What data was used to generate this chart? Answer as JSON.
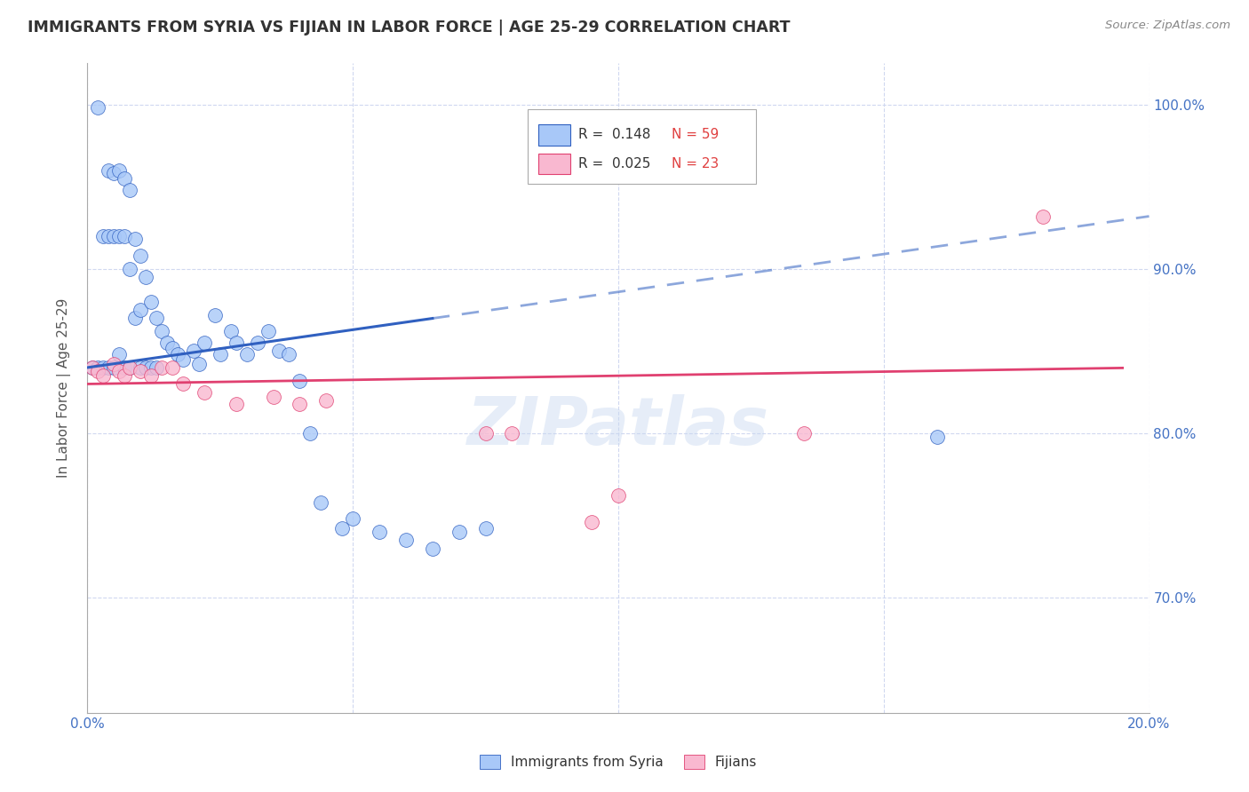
{
  "title": "IMMIGRANTS FROM SYRIA VS FIJIAN IN LABOR FORCE | AGE 25-29 CORRELATION CHART",
  "source": "Source: ZipAtlas.com",
  "ylabel": "In Labor Force | Age 25-29",
  "x_min": 0.0,
  "x_max": 0.2,
  "y_min": 0.63,
  "y_max": 1.025,
  "legend_syria_r": "R =  0.148",
  "legend_syria_n": "N = 59",
  "legend_fijian_r": "R =  0.025",
  "legend_fijian_n": "N = 23",
  "syria_color": "#A8C8F8",
  "fijian_color": "#F9B8D0",
  "syria_line_color": "#3060C0",
  "fijian_line_color": "#E04070",
  "syria_x": [
    0.001,
    0.002,
    0.002,
    0.003,
    0.003,
    0.004,
    0.004,
    0.004,
    0.005,
    0.005,
    0.005,
    0.006,
    0.006,
    0.006,
    0.007,
    0.007,
    0.007,
    0.008,
    0.008,
    0.008,
    0.009,
    0.009,
    0.01,
    0.01,
    0.01,
    0.011,
    0.011,
    0.012,
    0.012,
    0.013,
    0.013,
    0.014,
    0.015,
    0.016,
    0.017,
    0.018,
    0.02,
    0.021,
    0.022,
    0.024,
    0.025,
    0.027,
    0.028,
    0.03,
    0.032,
    0.034,
    0.036,
    0.038,
    0.04,
    0.042,
    0.044,
    0.048,
    0.05,
    0.055,
    0.06,
    0.065,
    0.07,
    0.075,
    0.16
  ],
  "syria_y": [
    0.84,
    0.998,
    0.84,
    0.92,
    0.84,
    0.96,
    0.92,
    0.84,
    0.958,
    0.92,
    0.84,
    0.96,
    0.92,
    0.848,
    0.955,
    0.92,
    0.84,
    0.948,
    0.9,
    0.84,
    0.918,
    0.87,
    0.908,
    0.875,
    0.84,
    0.895,
    0.84,
    0.88,
    0.84,
    0.87,
    0.84,
    0.862,
    0.855,
    0.852,
    0.848,
    0.845,
    0.85,
    0.842,
    0.855,
    0.872,
    0.848,
    0.862,
    0.855,
    0.848,
    0.855,
    0.862,
    0.85,
    0.848,
    0.832,
    0.8,
    0.758,
    0.742,
    0.748,
    0.74,
    0.735,
    0.73,
    0.74,
    0.742,
    0.798
  ],
  "fijian_x": [
    0.001,
    0.002,
    0.003,
    0.005,
    0.006,
    0.007,
    0.008,
    0.01,
    0.012,
    0.014,
    0.016,
    0.018,
    0.022,
    0.028,
    0.035,
    0.04,
    0.045,
    0.075,
    0.08,
    0.095,
    0.1,
    0.135,
    0.18
  ],
  "fijian_y": [
    0.84,
    0.838,
    0.835,
    0.842,
    0.838,
    0.835,
    0.84,
    0.838,
    0.835,
    0.84,
    0.84,
    0.83,
    0.825,
    0.818,
    0.822,
    0.818,
    0.82,
    0.8,
    0.8,
    0.746,
    0.762,
    0.8,
    0.932
  ],
  "syria_trend_x0": 0.0,
  "syria_trend_x1": 0.065,
  "syria_trend_x_dash_end": 0.2,
  "fijian_trend_x0": 0.0,
  "fijian_trend_x1": 0.195
}
